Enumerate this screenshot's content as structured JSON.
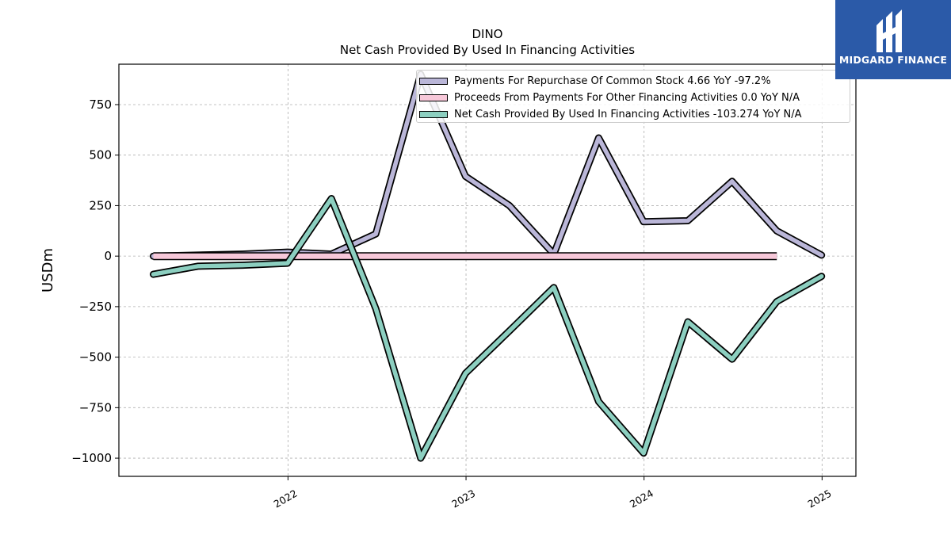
{
  "chart_data": {
    "type": "line",
    "title": "DINO",
    "subtitle": "Net Cash Provided By Used In Financing Activities",
    "ylabel": "USDm",
    "xlabel": "",
    "ylim": [
      -1090,
      950
    ],
    "xlim": [
      2021.05,
      2025.19
    ],
    "yticks": [
      750,
      500,
      250,
      0,
      -250,
      -500,
      -750,
      -1000
    ],
    "ytick_labels": [
      "750",
      "500",
      "250",
      "0",
      "−250",
      "−500",
      "−750",
      "−1000"
    ],
    "xticks": [
      2022,
      2023,
      2024,
      2025
    ],
    "xtick_labels": [
      "2022",
      "2023",
      "2024",
      "2025"
    ],
    "grid": true,
    "legend_position": "top-right",
    "series": [
      {
        "name": "Payments For Repurchase Of Common Stock",
        "legend_label": "Payments For Repurchase Of Common Stock  4.66 YoY -97.2%",
        "color": "#bab6d8",
        "x": [
          "2021-03-31",
          "2021-06-30",
          "2021-09-30",
          "2021-12-31",
          "2022-03-31",
          "2022-06-30",
          "2022-09-30",
          "2022-12-31",
          "2023-03-31",
          "2023-06-30",
          "2023-09-30",
          "2023-12-31",
          "2024-03-31",
          "2024-06-30",
          "2024-09-30",
          "2024-12-31"
        ],
        "y": [
          0,
          5,
          10,
          20,
          10,
          110,
          900,
          395,
          250,
          10,
          585,
          170,
          175,
          370,
          125,
          5
        ]
      },
      {
        "name": "Proceeds From Payments For Other Financing Activities",
        "legend_label": "Proceeds From Payments For Other Financing Activities  0.0 YoY N/A",
        "color": "#f7c8d9",
        "x": [
          "2021-03-31",
          "2021-06-30",
          "2021-09-30",
          "2021-12-31",
          "2022-03-31",
          "2022-06-30",
          "2022-09-30",
          "2022-12-31",
          "2023-03-31",
          "2023-06-30",
          "2023-09-30",
          "2023-12-31",
          "2024-03-31",
          "2024-06-30",
          "2024-09-30"
        ],
        "y": [
          0,
          0,
          0,
          0,
          0,
          0,
          0,
          0,
          0,
          0,
          0,
          0,
          0,
          0,
          0
        ]
      },
      {
        "name": "Net Cash Provided By Used In Financing Activities",
        "legend_label": "Net Cash Provided By Used In Financing Activities  -103.274 YoY N/A",
        "color": "#8ccfc0",
        "x": [
          "2021-03-31",
          "2021-06-30",
          "2021-09-30",
          "2021-12-31",
          "2022-03-31",
          "2022-06-30",
          "2022-09-30",
          "2022-12-31",
          "2023-03-31",
          "2023-06-30",
          "2023-09-30",
          "2023-12-31",
          "2024-03-31",
          "2024-06-30",
          "2024-09-30",
          "2024-12-31"
        ],
        "y": [
          -90,
          -50,
          -45,
          -35,
          285,
          -260,
          -1000,
          -580,
          -370,
          -155,
          -720,
          -975,
          -325,
          -510,
          -225,
          -100
        ]
      }
    ]
  },
  "logo": {
    "text": "MIDGARD FINANCE",
    "background": "#2b5aa8"
  }
}
